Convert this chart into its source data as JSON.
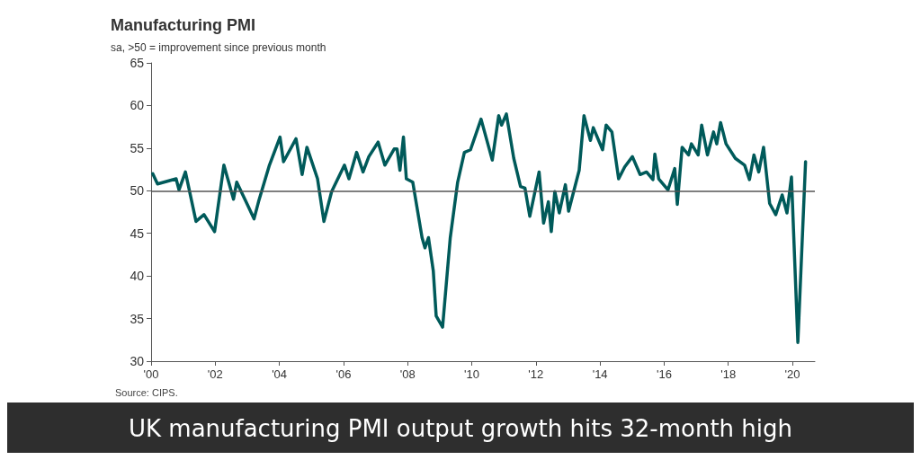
{
  "chart_data": {
    "type": "line",
    "title": "Manufacturing PMI",
    "subtitle": "sa, >50 = improvement since previous month",
    "x": [
      2000.05,
      2000.2,
      2000.78,
      2000.87,
      2001.07,
      2001.4,
      2001.65,
      2001.98,
      2002.27,
      2002.57,
      2002.67,
      2003.0,
      2003.21,
      2003.35,
      2003.69,
      2004.02,
      2004.13,
      2004.52,
      2004.71,
      2004.86,
      2005.19,
      2005.39,
      2005.63,
      2006.03,
      2006.17,
      2006.41,
      2006.61,
      2006.79,
      2007.08,
      2007.29,
      2007.58,
      2007.67,
      2007.76,
      2007.87,
      2007.96,
      2008.16,
      2008.45,
      2008.54,
      2008.65,
      2008.8,
      2008.89,
      2009.09,
      2009.33,
      2009.56,
      2009.77,
      2009.96,
      2010.29,
      2010.64,
      2010.84,
      2010.93,
      2011.08,
      2011.31,
      2011.52,
      2011.66,
      2011.81,
      2012.1,
      2012.24,
      2012.39,
      2012.48,
      2012.59,
      2012.73,
      2012.92,
      2013.02,
      2013.35,
      2013.5,
      2013.7,
      2013.79,
      2014.08,
      2014.19,
      2014.37,
      2014.58,
      2014.77,
      2015.01,
      2015.25,
      2015.45,
      2015.65,
      2015.71,
      2015.83,
      2016.12,
      2016.33,
      2016.41,
      2016.56,
      2016.76,
      2016.85,
      2017.06,
      2017.17,
      2017.35,
      2017.54,
      2017.64,
      2017.76,
      2017.93,
      2018.22,
      2018.51,
      2018.66,
      2018.8,
      2018.95,
      2019.1,
      2019.29,
      2019.48,
      2019.68,
      2019.83,
      2019.97,
      2020.17,
      2020.41
    ],
    "series": [
      {
        "color": "#005a5a",
        "values": [
          52.0,
          50.8,
          51.4,
          50.1,
          52.2,
          46.4,
          47.2,
          45.2,
          53.0,
          49.0,
          51.0,
          48.4,
          46.7,
          48.7,
          53.0,
          56.3,
          53.4,
          56.1,
          51.9,
          55.1,
          51.4,
          46.4,
          49.9,
          53.0,
          51.4,
          54.5,
          52.2,
          54.0,
          55.7,
          53.0,
          54.9,
          54.9,
          52.4,
          56.3,
          51.4,
          51.0,
          44.5,
          43.3,
          44.5,
          40.6,
          35.3,
          34.0,
          44.5,
          51.0,
          54.5,
          54.8,
          58.4,
          53.6,
          58.8,
          57.7,
          59.0,
          53.8,
          50.5,
          50.3,
          47.0,
          52.2,
          46.2,
          48.7,
          45.2,
          49.9,
          47.4,
          50.7,
          47.6,
          52.4,
          58.8,
          55.9,
          57.4,
          54.8,
          57.7,
          56.9,
          51.4,
          52.8,
          54.0,
          51.9,
          52.2,
          51.3,
          54.3,
          51.4,
          50.1,
          52.6,
          48.4,
          55.1,
          54.2,
          55.5,
          54.2,
          57.7,
          54.2,
          56.9,
          55.5,
          58.0,
          55.5,
          53.8,
          53.0,
          51.3,
          54.2,
          52.2,
          55.1,
          48.5,
          47.2,
          49.5,
          47.4,
          51.6,
          32.2,
          53.4
        ]
      }
    ],
    "xlim": [
      2000,
      2020.7
    ],
    "xticks": [
      {
        "value": 2000,
        "label": "'00"
      },
      {
        "value": 2002,
        "label": "'02"
      },
      {
        "value": 2004,
        "label": "'04"
      },
      {
        "value": 2006,
        "label": "'06"
      },
      {
        "value": 2008,
        "label": "'08"
      },
      {
        "value": 2010,
        "label": "'10"
      },
      {
        "value": 2012,
        "label": "'12"
      },
      {
        "value": 2014,
        "label": "'14"
      },
      {
        "value": 2016,
        "label": "'16"
      },
      {
        "value": 2018,
        "label": "'18"
      },
      {
        "value": 2020,
        "label": "'20"
      }
    ],
    "ylim": [
      30,
      65
    ],
    "yticks": [
      30,
      35,
      40,
      45,
      50,
      55,
      60,
      65
    ],
    "ref_lines": [
      {
        "axis": "y",
        "value": 50,
        "color": "#555555"
      }
    ],
    "grid": false,
    "marker": "none",
    "line_style": "solid",
    "annotations": [
      "Source: CIPS.",
      "UK manufacturing PMI output growth hits 32-month high"
    ]
  }
}
